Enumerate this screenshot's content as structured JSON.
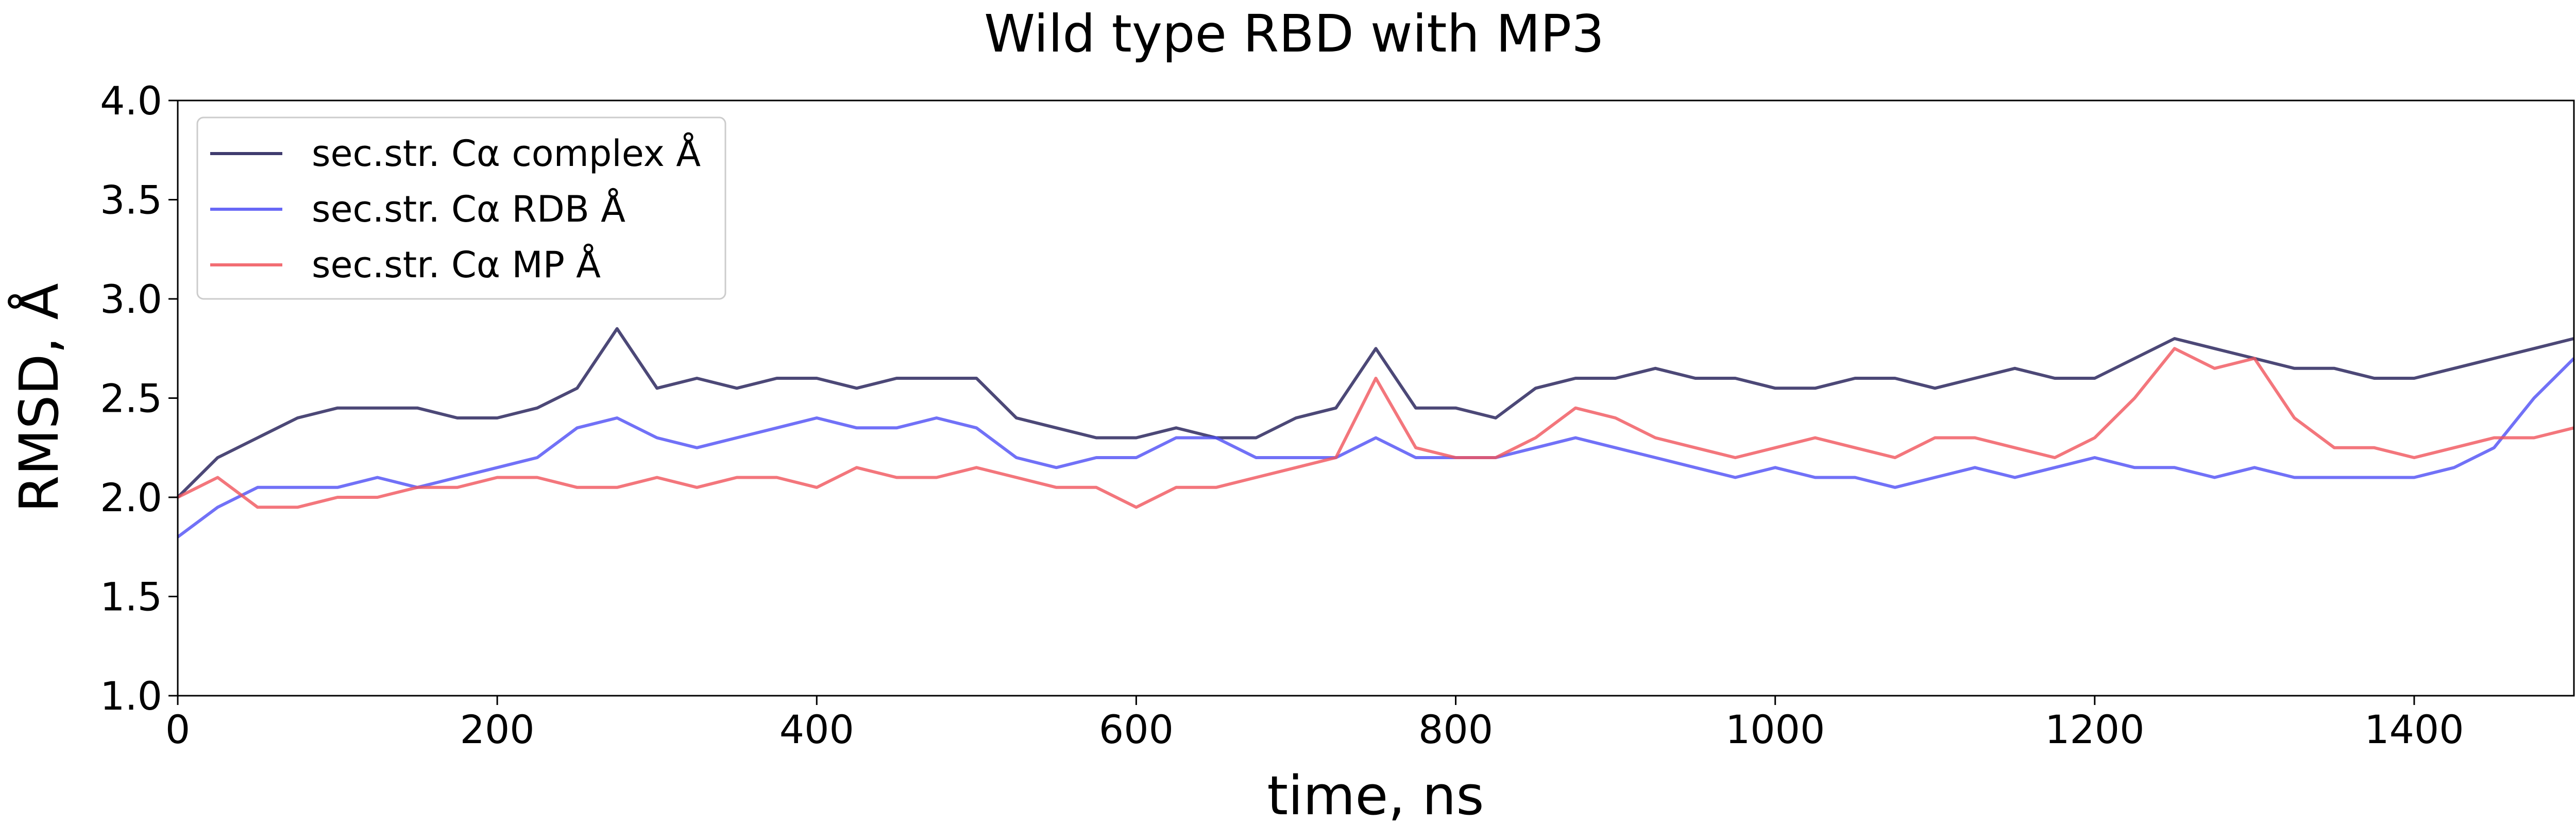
{
  "chart_data": {
    "type": "line",
    "title": "Wild type RBD with MP3",
    "xlabel": "time, ns",
    "ylabel": "RMSD, Å",
    "xlim": [
      0,
      1500
    ],
    "ylim": [
      1.0,
      4.0
    ],
    "xticks": [
      "0",
      "200",
      "400",
      "600",
      "800",
      "1000",
      "1200",
      "1400"
    ],
    "yticks": [
      "1.0",
      "1.5",
      "2.0",
      "2.5",
      "3.0",
      "3.5",
      "4.0"
    ],
    "grid": false,
    "legend_position": "top-left",
    "x": [
      0,
      25,
      50,
      75,
      100,
      125,
      150,
      175,
      200,
      225,
      250,
      275,
      300,
      325,
      350,
      375,
      400,
      425,
      450,
      475,
      500,
      525,
      550,
      575,
      600,
      625,
      650,
      675,
      700,
      725,
      750,
      775,
      800,
      825,
      850,
      875,
      900,
      925,
      950,
      975,
      1000,
      1025,
      1050,
      1075,
      1100,
      1125,
      1150,
      1175,
      1200,
      1225,
      1250,
      1275,
      1300,
      1325,
      1350,
      1375,
      1400,
      1425,
      1450,
      1475,
      1500
    ],
    "series": [
      {
        "name": "sec.str. Cα complex Å",
        "color": "#1f1a55",
        "values": [
          2.0,
          2.2,
          2.3,
          2.4,
          2.45,
          2.45,
          2.45,
          2.4,
          2.4,
          2.45,
          2.55,
          2.85,
          2.55,
          2.6,
          2.55,
          2.6,
          2.6,
          2.55,
          2.6,
          2.6,
          2.6,
          2.4,
          2.35,
          2.3,
          2.3,
          2.35,
          2.3,
          2.3,
          2.4,
          2.45,
          2.75,
          2.45,
          2.45,
          2.4,
          2.55,
          2.6,
          2.6,
          2.65,
          2.6,
          2.6,
          2.55,
          2.55,
          2.6,
          2.6,
          2.55,
          2.6,
          2.65,
          2.6,
          2.6,
          2.7,
          2.8,
          2.75,
          2.7,
          2.65,
          2.65,
          2.6,
          2.6,
          2.65,
          2.7,
          2.75,
          2.8
        ]
      },
      {
        "name": "sec.str. Cα RDB Å",
        "color": "#4d4df5",
        "values": [
          1.8,
          1.95,
          2.05,
          2.05,
          2.05,
          2.1,
          2.05,
          2.1,
          2.15,
          2.2,
          2.35,
          2.4,
          2.3,
          2.25,
          2.3,
          2.35,
          2.4,
          2.35,
          2.35,
          2.4,
          2.35,
          2.2,
          2.15,
          2.2,
          2.2,
          2.3,
          2.3,
          2.2,
          2.2,
          2.2,
          2.3,
          2.2,
          2.2,
          2.2,
          2.25,
          2.3,
          2.25,
          2.2,
          2.15,
          2.1,
          2.15,
          2.1,
          2.1,
          2.05,
          2.1,
          2.15,
          2.1,
          2.15,
          2.2,
          2.15,
          2.15,
          2.1,
          2.15,
          2.1,
          2.1,
          2.1,
          2.1,
          2.15,
          2.25,
          2.5,
          2.7
        ]
      },
      {
        "name": "sec.str. Cα MP Å",
        "color": "#f0545b",
        "values": [
          2.0,
          2.1,
          1.95,
          1.95,
          2.0,
          2.0,
          2.05,
          2.05,
          2.1,
          2.1,
          2.05,
          2.05,
          2.1,
          2.05,
          2.1,
          2.1,
          2.05,
          2.15,
          2.1,
          2.1,
          2.15,
          2.1,
          2.05,
          2.05,
          1.95,
          2.05,
          2.05,
          2.1,
          2.15,
          2.2,
          2.6,
          2.25,
          2.2,
          2.2,
          2.3,
          2.45,
          2.4,
          2.3,
          2.25,
          2.2,
          2.25,
          2.3,
          2.25,
          2.2,
          2.3,
          2.3,
          2.25,
          2.2,
          2.3,
          2.5,
          2.75,
          2.65,
          2.7,
          2.4,
          2.25,
          2.25,
          2.2,
          2.25,
          2.3,
          2.3,
          2.35
        ]
      }
    ]
  }
}
